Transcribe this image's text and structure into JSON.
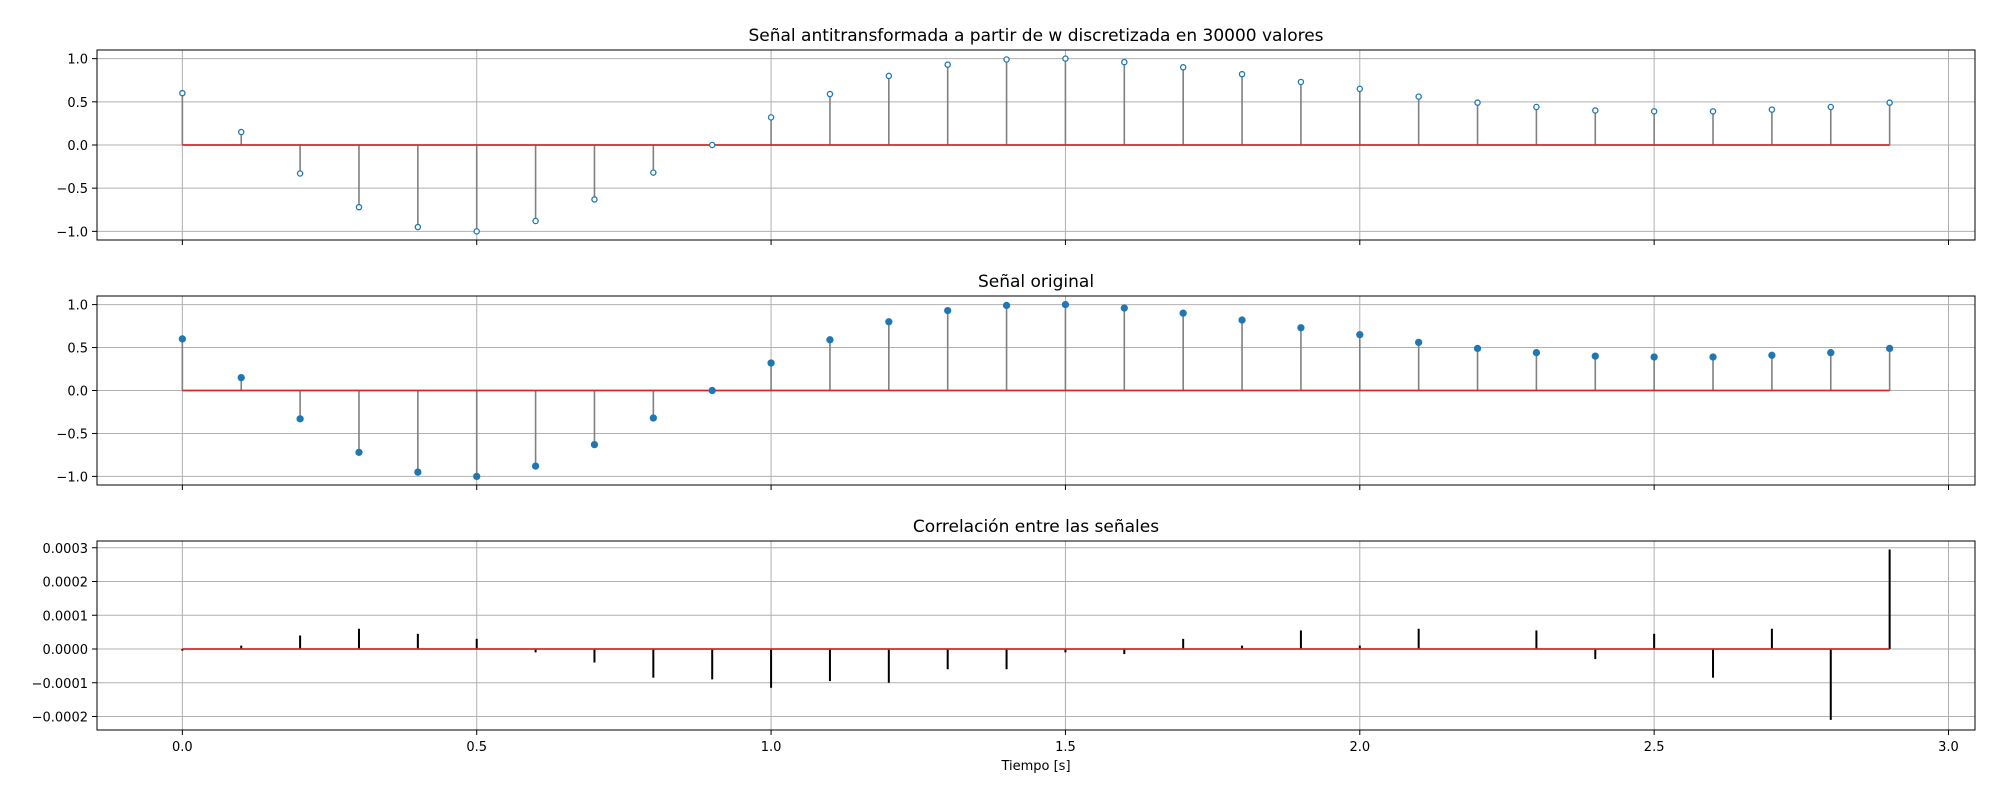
{
  "figure": {
    "xlabel": "Tiempo [s]",
    "colors": {
      "stem": "#808080",
      "stem_black": "#000000",
      "baseline": "#d62728",
      "marker": "#1f77b4",
      "grid": "#b0b0b0"
    }
  },
  "chart_data": [
    {
      "type": "stem",
      "title": "Señal antitransformada a partir de w discretizada en 30000 valores",
      "xlabel": "",
      "ylabel": "",
      "xlim": [
        -0.145,
        3.045
      ],
      "ylim": [
        -1.1,
        1.1
      ],
      "xticks": [
        0.0,
        0.5,
        1.0,
        1.5,
        2.0,
        2.5,
        3.0
      ],
      "xtick_labels": [],
      "yticks": [
        1.0,
        0.5,
        0.0,
        -0.5,
        -1.0
      ],
      "ytick_labels": [
        "1.0",
        "0.5",
        "0.0",
        "−0.5",
        "−1.0"
      ],
      "marker": "hollow-circle",
      "stem_color": "gray",
      "grid": true,
      "x": [
        0.0,
        0.1,
        0.2,
        0.3,
        0.4,
        0.5,
        0.6,
        0.7,
        0.8,
        0.9,
        1.0,
        1.1,
        1.2,
        1.3,
        1.4,
        1.5,
        1.6,
        1.7,
        1.8,
        1.9,
        2.0,
        2.1,
        2.2,
        2.3,
        2.4,
        2.5,
        2.6,
        2.7,
        2.8,
        2.9
      ],
      "values": [
        0.6,
        0.15,
        -0.33,
        -0.72,
        -0.95,
        -1.0,
        -0.88,
        -0.63,
        -0.32,
        0.0,
        0.32,
        0.59,
        0.8,
        0.93,
        0.99,
        1.0,
        0.96,
        0.9,
        0.82,
        0.73,
        0.65,
        0.56,
        0.49,
        0.44,
        0.4,
        0.39,
        0.39,
        0.41,
        0.44,
        0.49
      ]
    },
    {
      "type": "stem",
      "title": "Señal original",
      "xlabel": "",
      "ylabel": "",
      "xlim": [
        -0.145,
        3.045
      ],
      "ylim": [
        -1.1,
        1.1
      ],
      "xticks": [
        0.0,
        0.5,
        1.0,
        1.5,
        2.0,
        2.5,
        3.0
      ],
      "xtick_labels": [],
      "yticks": [
        1.0,
        0.5,
        0.0,
        -0.5,
        -1.0
      ],
      "ytick_labels": [
        "1.0",
        "0.5",
        "0.0",
        "−0.5",
        "−1.0"
      ],
      "marker": "filled-circle",
      "stem_color": "gray",
      "grid": true,
      "x": [
        0.0,
        0.1,
        0.2,
        0.3,
        0.4,
        0.5,
        0.6,
        0.7,
        0.8,
        0.9,
        1.0,
        1.1,
        1.2,
        1.3,
        1.4,
        1.5,
        1.6,
        1.7,
        1.8,
        1.9,
        2.0,
        2.1,
        2.2,
        2.3,
        2.4,
        2.5,
        2.6,
        2.7,
        2.8,
        2.9
      ],
      "values": [
        0.6,
        0.15,
        -0.33,
        -0.72,
        -0.95,
        -1.0,
        -0.88,
        -0.63,
        -0.32,
        0.0,
        0.32,
        0.59,
        0.8,
        0.93,
        0.99,
        1.0,
        0.96,
        0.9,
        0.82,
        0.73,
        0.65,
        0.56,
        0.49,
        0.44,
        0.4,
        0.39,
        0.39,
        0.41,
        0.44,
        0.49
      ]
    },
    {
      "type": "stem",
      "title": "Correlación entre las señales",
      "xlabel": "Tiempo [s]",
      "ylabel": "",
      "xlim": [
        -0.145,
        3.045
      ],
      "ylim": [
        -0.00024,
        0.00032
      ],
      "xticks": [
        0.0,
        0.5,
        1.0,
        1.5,
        2.0,
        2.5,
        3.0
      ],
      "xtick_labels": [
        "0.0",
        "0.5",
        "1.0",
        "1.5",
        "2.0",
        "2.5",
        "3.0"
      ],
      "yticks": [
        0.0003,
        0.0002,
        0.0001,
        0.0,
        -0.0001,
        -0.0002
      ],
      "ytick_labels": [
        "0.0003",
        "0.0002",
        "0.0001",
        "0.0000",
        "−0.0001",
        "−0.0002"
      ],
      "marker": "none",
      "stem_color": "black",
      "grid": true,
      "x": [
        0.0,
        0.1,
        0.2,
        0.3,
        0.4,
        0.5,
        0.6,
        0.7,
        0.8,
        0.9,
        1.0,
        1.1,
        1.2,
        1.3,
        1.4,
        1.5,
        1.6,
        1.7,
        1.8,
        1.9,
        2.0,
        2.1,
        2.2,
        2.3,
        2.4,
        2.5,
        2.6,
        2.7,
        2.8,
        2.9
      ],
      "values": [
        -5e-06,
        1e-05,
        4e-05,
        6e-05,
        4.5e-05,
        3e-05,
        -1e-05,
        -4e-05,
        -8.5e-05,
        -9e-05,
        -0.000115,
        -9.5e-05,
        -0.0001,
        -6e-05,
        -6e-05,
        -1e-05,
        -1.5e-05,
        3e-05,
        1e-05,
        5.5e-05,
        1e-05,
        6e-05,
        0.0,
        5.5e-05,
        -3e-05,
        4.5e-05,
        -8.5e-05,
        6e-05,
        -0.00021,
        0.000295
      ]
    }
  ]
}
